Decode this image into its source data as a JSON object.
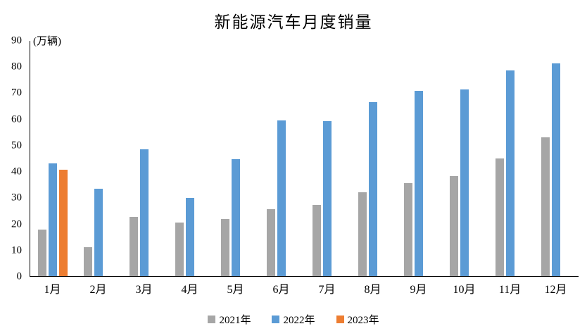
{
  "title": "新能源汽车月度销量",
  "unit_label": "(万辆)",
  "colors": {
    "axis": "#000000",
    "text": "#000000",
    "series_2021": "#A6A6A6",
    "series_2022": "#5B9BD5",
    "series_2023": "#ED7D31"
  },
  "chart_data": {
    "type": "bar",
    "title": "新能源汽车月度销量",
    "ylabel": "(万辆)",
    "xlabel": "",
    "categories": [
      "1月",
      "2月",
      "3月",
      "4月",
      "5月",
      "6月",
      "7月",
      "8月",
      "9月",
      "10月",
      "11月",
      "12月"
    ],
    "series": [
      {
        "name": "2021年",
        "color": "#A6A6A6",
        "values": [
          17.9,
          11.0,
          22.6,
          20.6,
          21.7,
          25.6,
          27.1,
          32.1,
          35.7,
          38.3,
          45.0,
          53.1
        ]
      },
      {
        "name": "2022年",
        "color": "#5B9BD5",
        "values": [
          43.1,
          33.4,
          48.4,
          29.9,
          44.7,
          59.6,
          59.3,
          66.6,
          70.8,
          71.4,
          78.6,
          81.4
        ]
      },
      {
        "name": "2023年",
        "color": "#ED7D31",
        "values": [
          40.8,
          null,
          null,
          null,
          null,
          null,
          null,
          null,
          null,
          null,
          null,
          null
        ]
      }
    ],
    "ylim": [
      0,
      90
    ],
    "yticks": [
      0,
      10,
      20,
      30,
      40,
      50,
      60,
      70,
      80,
      90
    ],
    "grid": false,
    "legend_position": "bottom"
  }
}
